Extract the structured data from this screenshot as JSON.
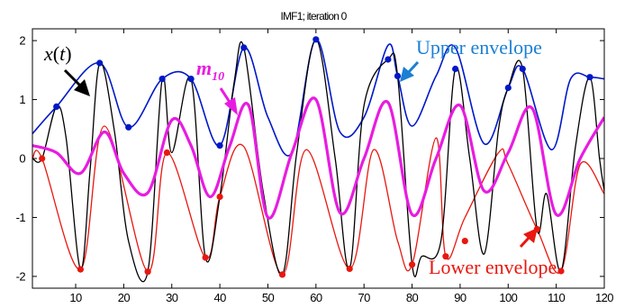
{
  "chart_data": {
    "type": "line",
    "title": "IMF1; iteration 0",
    "xlabel": "",
    "ylabel": "",
    "xlim": [
      1,
      120
    ],
    "ylim": [
      -2.2,
      2.2
    ],
    "x_ticks": [
      10,
      20,
      30,
      40,
      50,
      60,
      70,
      80,
      90,
      100,
      110,
      120
    ],
    "x_tick_labels": [
      "10",
      "20",
      "30",
      "40",
      "50",
      "60",
      "70",
      "80",
      "90",
      "100",
      "110",
      "120"
    ],
    "y_ticks": [
      -2,
      -1,
      0,
      1,
      2
    ],
    "y_tick_labels": [
      "-2",
      "-1",
      "0",
      "1",
      "2"
    ],
    "grid": false,
    "colors": {
      "signal": "#000000",
      "upper": "#0018c8",
      "lower": "#e8170f",
      "mean": "#e81ce0",
      "upper_annotation": "#1a7fd4",
      "lower_annotation": "#e8170f",
      "mean_annotation": "#e81ce0"
    },
    "series": [
      {
        "id": "signal",
        "x": [
          1,
          3,
          6,
          8,
          11,
          13,
          15,
          18,
          21,
          25,
          28,
          30,
          34,
          37,
          40,
          43,
          45,
          49,
          53,
          56,
          60,
          64,
          67,
          70,
          75,
          77,
          80,
          82,
          86,
          89,
          92,
          95,
          98,
          100,
          103,
          106,
          108,
          111,
          114,
          117,
          119,
          120
        ],
        "y": [
          0,
          0,
          0.88,
          0.35,
          -1.88,
          -0.2,
          1.62,
          0.5,
          -1.4,
          -1.92,
          1.35,
          0.1,
          1.35,
          -1.68,
          -0.65,
          1.3,
          1.88,
          -0.55,
          -1.97,
          0.1,
          2.02,
          0.0,
          -1.87,
          0.9,
          1.68,
          1.4,
          -1.8,
          -1.66,
          -1.4,
          1.52,
          0.0,
          -1.62,
          0.5,
          1.2,
          1.52,
          -1.2,
          -0.6,
          -1.91,
          0.2,
          1.38,
          0.0,
          -0.55
        ]
      },
      {
        "id": "upper",
        "x": [
          1,
          6,
          15,
          21,
          28,
          34,
          40,
          45,
          50,
          55,
          60,
          65,
          70,
          75,
          77,
          80,
          85,
          89,
          95,
          100,
          103,
          109,
          113,
          117,
          120
        ],
        "y": [
          0.42,
          0.88,
          1.62,
          0.53,
          1.35,
          1.35,
          0.22,
          1.88,
          0.7,
          0.1,
          2.02,
          0.45,
          0.7,
          1.92,
          1.4,
          0.55,
          1.4,
          1.88,
          0.25,
          1.2,
          1.52,
          0.15,
          1.35,
          1.38,
          1.35
        ]
      },
      {
        "id": "lower",
        "x": [
          1,
          3,
          11,
          16,
          25,
          29,
          37,
          40,
          45,
          53,
          58,
          67,
          72,
          77,
          80,
          85,
          87,
          91,
          98,
          100,
          106,
          111,
          115,
          120
        ],
        "y": [
          0.0,
          0.0,
          -1.88,
          0.55,
          -1.92,
          0.1,
          -1.68,
          -0.65,
          0.2,
          -1.97,
          0.15,
          -1.87,
          0.15,
          -1.4,
          -1.8,
          0.35,
          -1.66,
          -1.0,
          0.1,
          -0.1,
          -1.2,
          -1.91,
          -0.1,
          -0.6
        ]
      },
      {
        "id": "mean",
        "x": [
          1,
          6,
          11,
          16,
          20,
          25,
          30,
          34,
          38,
          42,
          46,
          50,
          55,
          60,
          65,
          70,
          75,
          80,
          85,
          90,
          95,
          100,
          105,
          110,
          115,
          120
        ],
        "y": [
          0.22,
          0.1,
          -0.25,
          0.45,
          -0.25,
          -0.58,
          0.65,
          0.22,
          -0.65,
          0.2,
          0.9,
          -1.0,
          0.1,
          1.0,
          -0.92,
          0.0,
          0.95,
          -0.95,
          0.0,
          0.9,
          -0.55,
          0.1,
          0.85,
          -0.95,
          0.0,
          0.7
        ]
      }
    ],
    "markers": {
      "upper": {
        "x": [
          6,
          15,
          21,
          28,
          34,
          40,
          45,
          60,
          75,
          77,
          89,
          100,
          103,
          117
        ],
        "y": [
          0.88,
          1.62,
          0.53,
          1.35,
          1.35,
          0.22,
          1.88,
          2.02,
          1.68,
          1.4,
          1.52,
          1.2,
          1.52,
          1.38
        ]
      },
      "lower": {
        "x": [
          3,
          11,
          25,
          29,
          37,
          40,
          53,
          67,
          80,
          87,
          91,
          106,
          111
        ],
        "y": [
          0.0,
          -1.88,
          -1.92,
          0.1,
          -1.68,
          -0.65,
          -1.97,
          -1.87,
          -1.8,
          -1.66,
          -1.4,
          -1.2,
          -1.91
        ]
      }
    },
    "annotations": [
      {
        "id": "signal-label",
        "base": "x",
        "arg": "(",
        "var": "t",
        "close": ")",
        "series": "signal"
      },
      {
        "id": "mean-label",
        "base": "m",
        "sub": "10",
        "series": "mean"
      },
      {
        "id": "upper-label",
        "text": "Upper envelope",
        "series": "upper"
      },
      {
        "id": "lower-label",
        "text": "Lower envelope",
        "series": "lower"
      }
    ]
  }
}
